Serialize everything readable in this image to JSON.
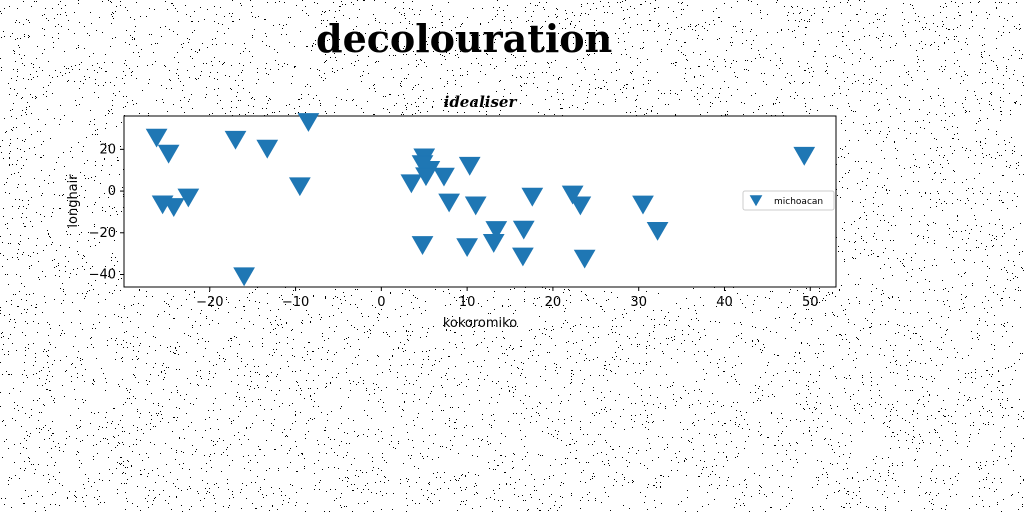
{
  "page_title": "decolouration",
  "chart_data": {
    "type": "scatter",
    "title": "idealiser",
    "xlabel": "kokoromiko",
    "ylabel": "longhair",
    "xlim": [
      -30,
      53
    ],
    "ylim": [
      -46,
      36
    ],
    "xticks": [
      -20,
      -10,
      0,
      10,
      20,
      30,
      40,
      50
    ],
    "xtick_labels": [
      "−20",
      "−10",
      "0",
      "10",
      "20",
      "30",
      "40",
      "50"
    ],
    "yticks": [
      -40,
      -20,
      0,
      20
    ],
    "ytick_labels": [
      "−40",
      "−20",
      "0",
      "20"
    ],
    "grid": false,
    "legend_position": "center-right",
    "marker": "triangle-down",
    "marker_color": "#1f77b4",
    "series": [
      {
        "name": "michoacan",
        "points": [
          [
            -26.2,
            25.5
          ],
          [
            -24.8,
            17.8
          ],
          [
            -25.5,
            -6.5
          ],
          [
            -24.2,
            -7.8
          ],
          [
            -22.5,
            -3.2
          ],
          [
            -17.0,
            24.5
          ],
          [
            -13.3,
            20.2
          ],
          [
            -16.0,
            -41.0
          ],
          [
            -9.5,
            2.2
          ],
          [
            -8.5,
            33.0
          ],
          [
            3.5,
            3.6
          ],
          [
            5.0,
            16.0
          ],
          [
            4.8,
            12.8
          ],
          [
            5.6,
            10.0
          ],
          [
            5.2,
            7.0
          ],
          [
            7.3,
            6.8
          ],
          [
            7.9,
            -5.6
          ],
          [
            10.3,
            12.0
          ],
          [
            11.0,
            -7.0
          ],
          [
            13.4,
            -18.8
          ],
          [
            13.1,
            -25.0
          ],
          [
            4.8,
            -26.0
          ],
          [
            10.0,
            -27.0
          ],
          [
            16.6,
            -18.6
          ],
          [
            16.5,
            -31.5
          ],
          [
            17.6,
            -2.8
          ],
          [
            22.3,
            -1.8
          ],
          [
            23.2,
            -7.0
          ],
          [
            23.7,
            -32.5
          ],
          [
            30.5,
            -6.6
          ],
          [
            32.2,
            -19.2
          ],
          [
            49.3,
            16.8
          ]
        ]
      }
    ]
  }
}
